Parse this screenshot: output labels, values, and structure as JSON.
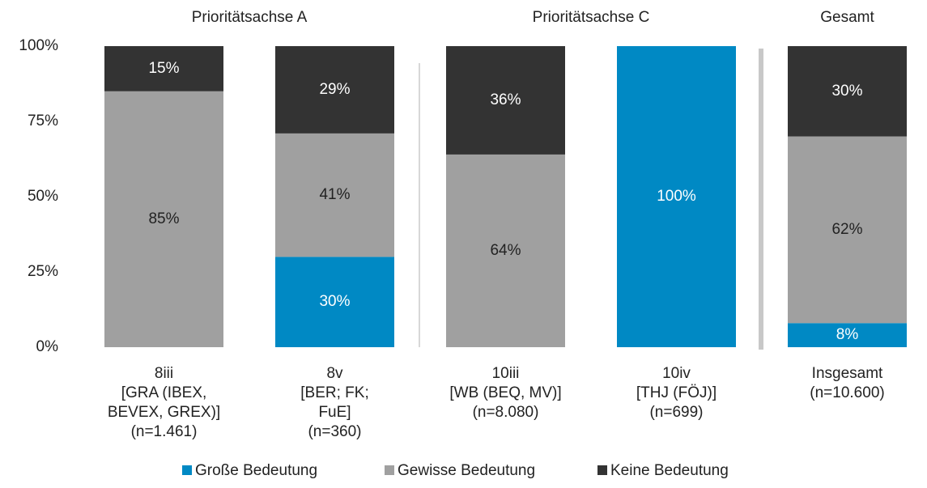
{
  "chart_data": {
    "type": "stacked_bar",
    "groups": [
      "Prioritätsachse A",
      "Prioritätsachse C",
      "Gesamt"
    ],
    "categories": [
      [
        "8iii",
        "[GRA (IBEX,",
        "BEVEX, GREX)]",
        "(n=1.461)"
      ],
      [
        "8v",
        "[BER; FK;",
        "FuE]",
        "(n=360)"
      ],
      [
        "10iii",
        "[WB (BEQ, MV)]",
        "(n=8.080)"
      ],
      [
        "10iv",
        "[THJ (FÖJ)]",
        "(n=699)"
      ],
      [
        "Insgesamt",
        "(n=10.600)"
      ]
    ],
    "series": [
      {
        "name": "Große Bedeutung",
        "color": "#0089c4",
        "values": [
          0,
          30,
          0,
          100,
          8
        ],
        "value_labels": [
          null,
          "30%",
          null,
          "100%",
          "8%"
        ]
      },
      {
        "name": "Gewisse Bedeutung",
        "color": "#a0a0a0",
        "values": [
          85,
          41,
          64,
          0,
          62
        ],
        "value_labels": [
          "85%",
          "41%",
          "64%",
          null,
          "62%"
        ]
      },
      {
        "name": "Keine Bedeutung",
        "color": "#333333",
        "values": [
          15,
          29,
          36,
          0,
          30
        ],
        "value_labels": [
          "15%",
          "29%",
          "36%",
          null,
          "30%"
        ]
      }
    ],
    "ylim": [
      0,
      100
    ],
    "yticks": [
      {
        "value": 0,
        "label": "0%"
      },
      {
        "value": 25,
        "label": "25%"
      },
      {
        "value": 50,
        "label": "50%"
      },
      {
        "value": 75,
        "label": "75%"
      },
      {
        "value": 100,
        "label": "100%"
      }
    ],
    "legend": "bottom"
  }
}
